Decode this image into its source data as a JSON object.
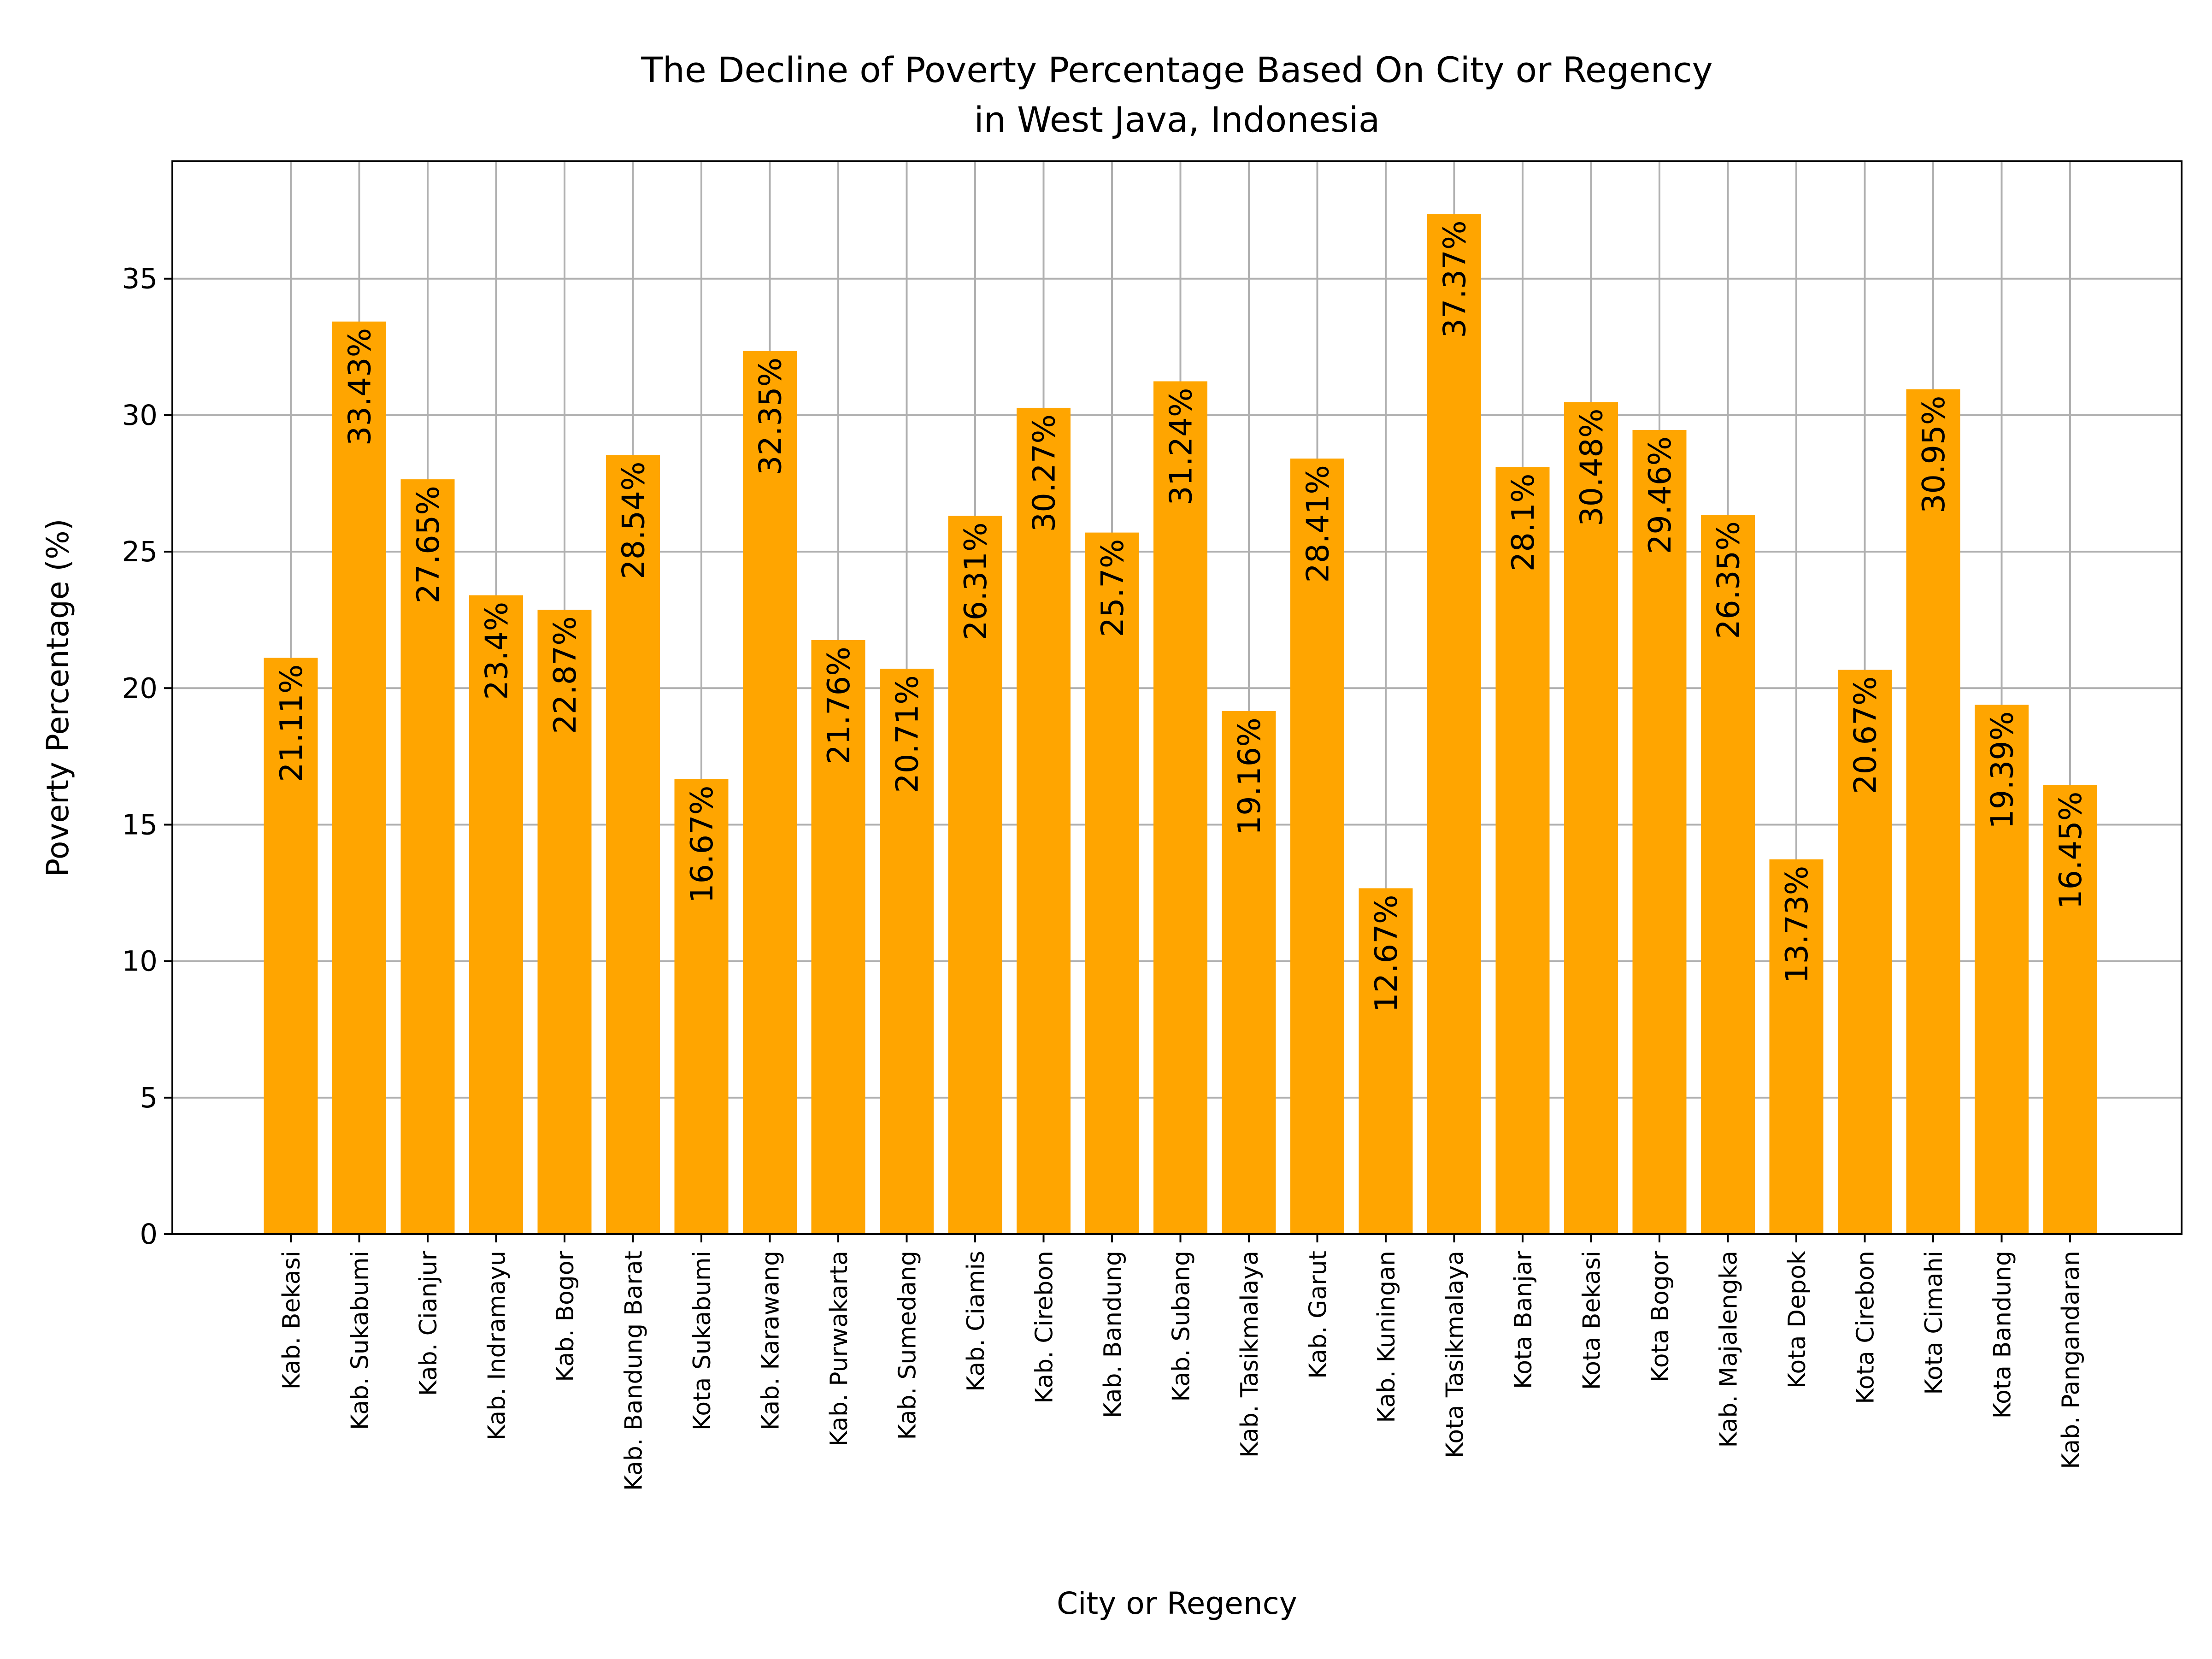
{
  "chart_data": {
    "type": "bar",
    "title": "The Decline of Poverty Percentage Based On City or Regency",
    "subtitle": "in West Java, Indonesia",
    "xlabel": "City or Regency",
    "ylabel": "Poverty Percentage (%)",
    "ylim": [
      0,
      39.3
    ],
    "yticks": [
      0,
      5,
      10,
      15,
      20,
      25,
      30,
      35
    ],
    "grid": true,
    "bar_color": "#FFA500",
    "categories": [
      "Kab. Bekasi",
      "Kab. Sukabumi",
      "Kab. Cianjur",
      "Kab. Indramayu",
      "Kab. Bogor",
      "Kab. Bandung Barat",
      "Kota Sukabumi",
      "Kab. Karawang",
      "Kab. Purwakarta",
      "Kab. Sumedang",
      "Kab. Ciamis",
      "Kab. Cirebon",
      "Kab. Bandung",
      "Kab. Subang",
      "Kab. Tasikmalaya",
      "Kab. Garut",
      "Kab. Kuningan",
      "Kota Tasikmalaya",
      "Kota Banjar",
      "Kota Bekasi",
      "Kota Bogor",
      "Kab. Majalengka",
      "Kota Depok",
      "Kota Cirebon",
      "Kota Cimahi",
      "Kota Bandung",
      "Kab. Pangandaran"
    ],
    "values": [
      21.11,
      33.43,
      27.65,
      23.4,
      22.87,
      28.54,
      16.67,
      32.35,
      21.76,
      20.71,
      26.31,
      30.27,
      25.7,
      31.24,
      19.16,
      28.41,
      12.67,
      37.37,
      28.1,
      30.48,
      29.46,
      26.35,
      13.73,
      20.67,
      30.95,
      19.39,
      16.45
    ],
    "value_labels": [
      "21.11%",
      "33.43%",
      "27.65%",
      "23.4%",
      "22.87%",
      "28.54%",
      "16.67%",
      "32.35%",
      "21.76%",
      "20.71%",
      "26.31%",
      "30.27%",
      "25.7%",
      "31.24%",
      "19.16%",
      "28.41%",
      "12.67%",
      "37.37%",
      "28.1%",
      "30.48%",
      "29.46%",
      "26.35%",
      "13.73%",
      "20.67%",
      "30.95%",
      "19.39%",
      "16.45%"
    ]
  }
}
